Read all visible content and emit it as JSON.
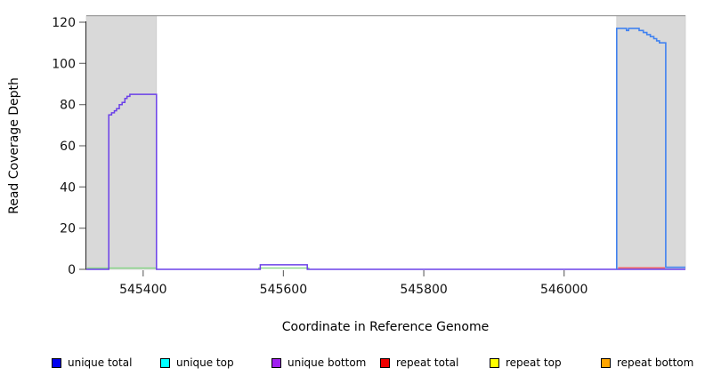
{
  "chart_data": {
    "type": "line",
    "title": "",
    "xlabel": "Coordinate in Reference Genome",
    "ylabel": "Read Coverage Depth",
    "xlim": [
      545319,
      546173
    ],
    "ylim": [
      0,
      120
    ],
    "x_ticks": [
      545400,
      545600,
      545800,
      546000
    ],
    "y_ticks": [
      0,
      20,
      40,
      60,
      80,
      100,
      120
    ],
    "grid": false,
    "background": "#ffffff",
    "region_fill": "#d9d9d9",
    "region_edge": "#c9c9c9",
    "region_top": 123.2,
    "boundary_line_color": "#a0a0a0",
    "axis_color": "#2a2a2a",
    "tick_color": "#6e6e6e",
    "label_color": "#111111",
    "highlight_regions": [
      {
        "name": "left shaded repeat region",
        "x0": 545319,
        "x1": 545419
      },
      {
        "name": "right shaded repeat region",
        "x0": 546075,
        "x1": 546173
      }
    ],
    "series": [
      {
        "id": "green-trace-left",
        "name": "near-zero coverage trace under left region",
        "color": "#87d787",
        "step": false,
        "width": 1.4,
        "points": [
          [
            545320,
            0.6
          ],
          [
            545418,
            0.6
          ]
        ]
      },
      {
        "id": "green-trace-mid",
        "name": "near-zero coverage trace under mid bump",
        "color": "#87d787",
        "step": false,
        "width": 1.4,
        "points": [
          [
            545564,
            0.6
          ],
          [
            545637,
            0.6
          ]
        ]
      },
      {
        "id": "red-trace-right",
        "name": "repeat coverage trace in right region",
        "color": "#ef5a63",
        "step": false,
        "width": 1.5,
        "points": [
          [
            546077,
            0.7
          ],
          [
            546144,
            0.7
          ]
        ]
      },
      {
        "id": "purple-trace",
        "name": "coverage step trace with left block (75-85) and bump near 545600",
        "color": "#6b40e8",
        "step": true,
        "width": 1.5,
        "points": [
          [
            545319,
            0
          ],
          [
            545351,
            75
          ],
          [
            545355,
            76
          ],
          [
            545359,
            77
          ],
          [
            545362,
            78
          ],
          [
            545366,
            80
          ],
          [
            545370,
            81
          ],
          [
            545374,
            83
          ],
          [
            545377,
            84
          ],
          [
            545381,
            85
          ],
          [
            545419,
            0
          ],
          [
            545567,
            2.2
          ],
          [
            545634,
            0
          ],
          [
            546173,
            0
          ]
        ]
      },
      {
        "id": "blue-trace",
        "name": "coverage step trace in right region (117 stepping down to 110, drop to 1)",
        "color": "#4182f0",
        "step": true,
        "width": 1.6,
        "points": [
          [
            546075,
            0
          ],
          [
            546075,
            117
          ],
          [
            546089,
            116
          ],
          [
            546092,
            117
          ],
          [
            546107,
            116
          ],
          [
            546113,
            115
          ],
          [
            546118,
            114
          ],
          [
            546123,
            113
          ],
          [
            546128,
            112
          ],
          [
            546132,
            111
          ],
          [
            546136,
            110
          ],
          [
            546145,
            1
          ],
          [
            546173,
            1
          ]
        ]
      }
    ],
    "legend": {
      "position": "bottom",
      "items": [
        {
          "label": "unique total",
          "color": "#0000ee"
        },
        {
          "label": "unique top",
          "color": "#00ffff"
        },
        {
          "label": "unique bottom",
          "color": "#a020f0"
        },
        {
          "label": "repeat total",
          "color": "#ee0000"
        },
        {
          "label": "repeat top",
          "color": "#ffff00"
        },
        {
          "label": "repeat bottom",
          "color": "#ffa500"
        }
      ]
    }
  }
}
